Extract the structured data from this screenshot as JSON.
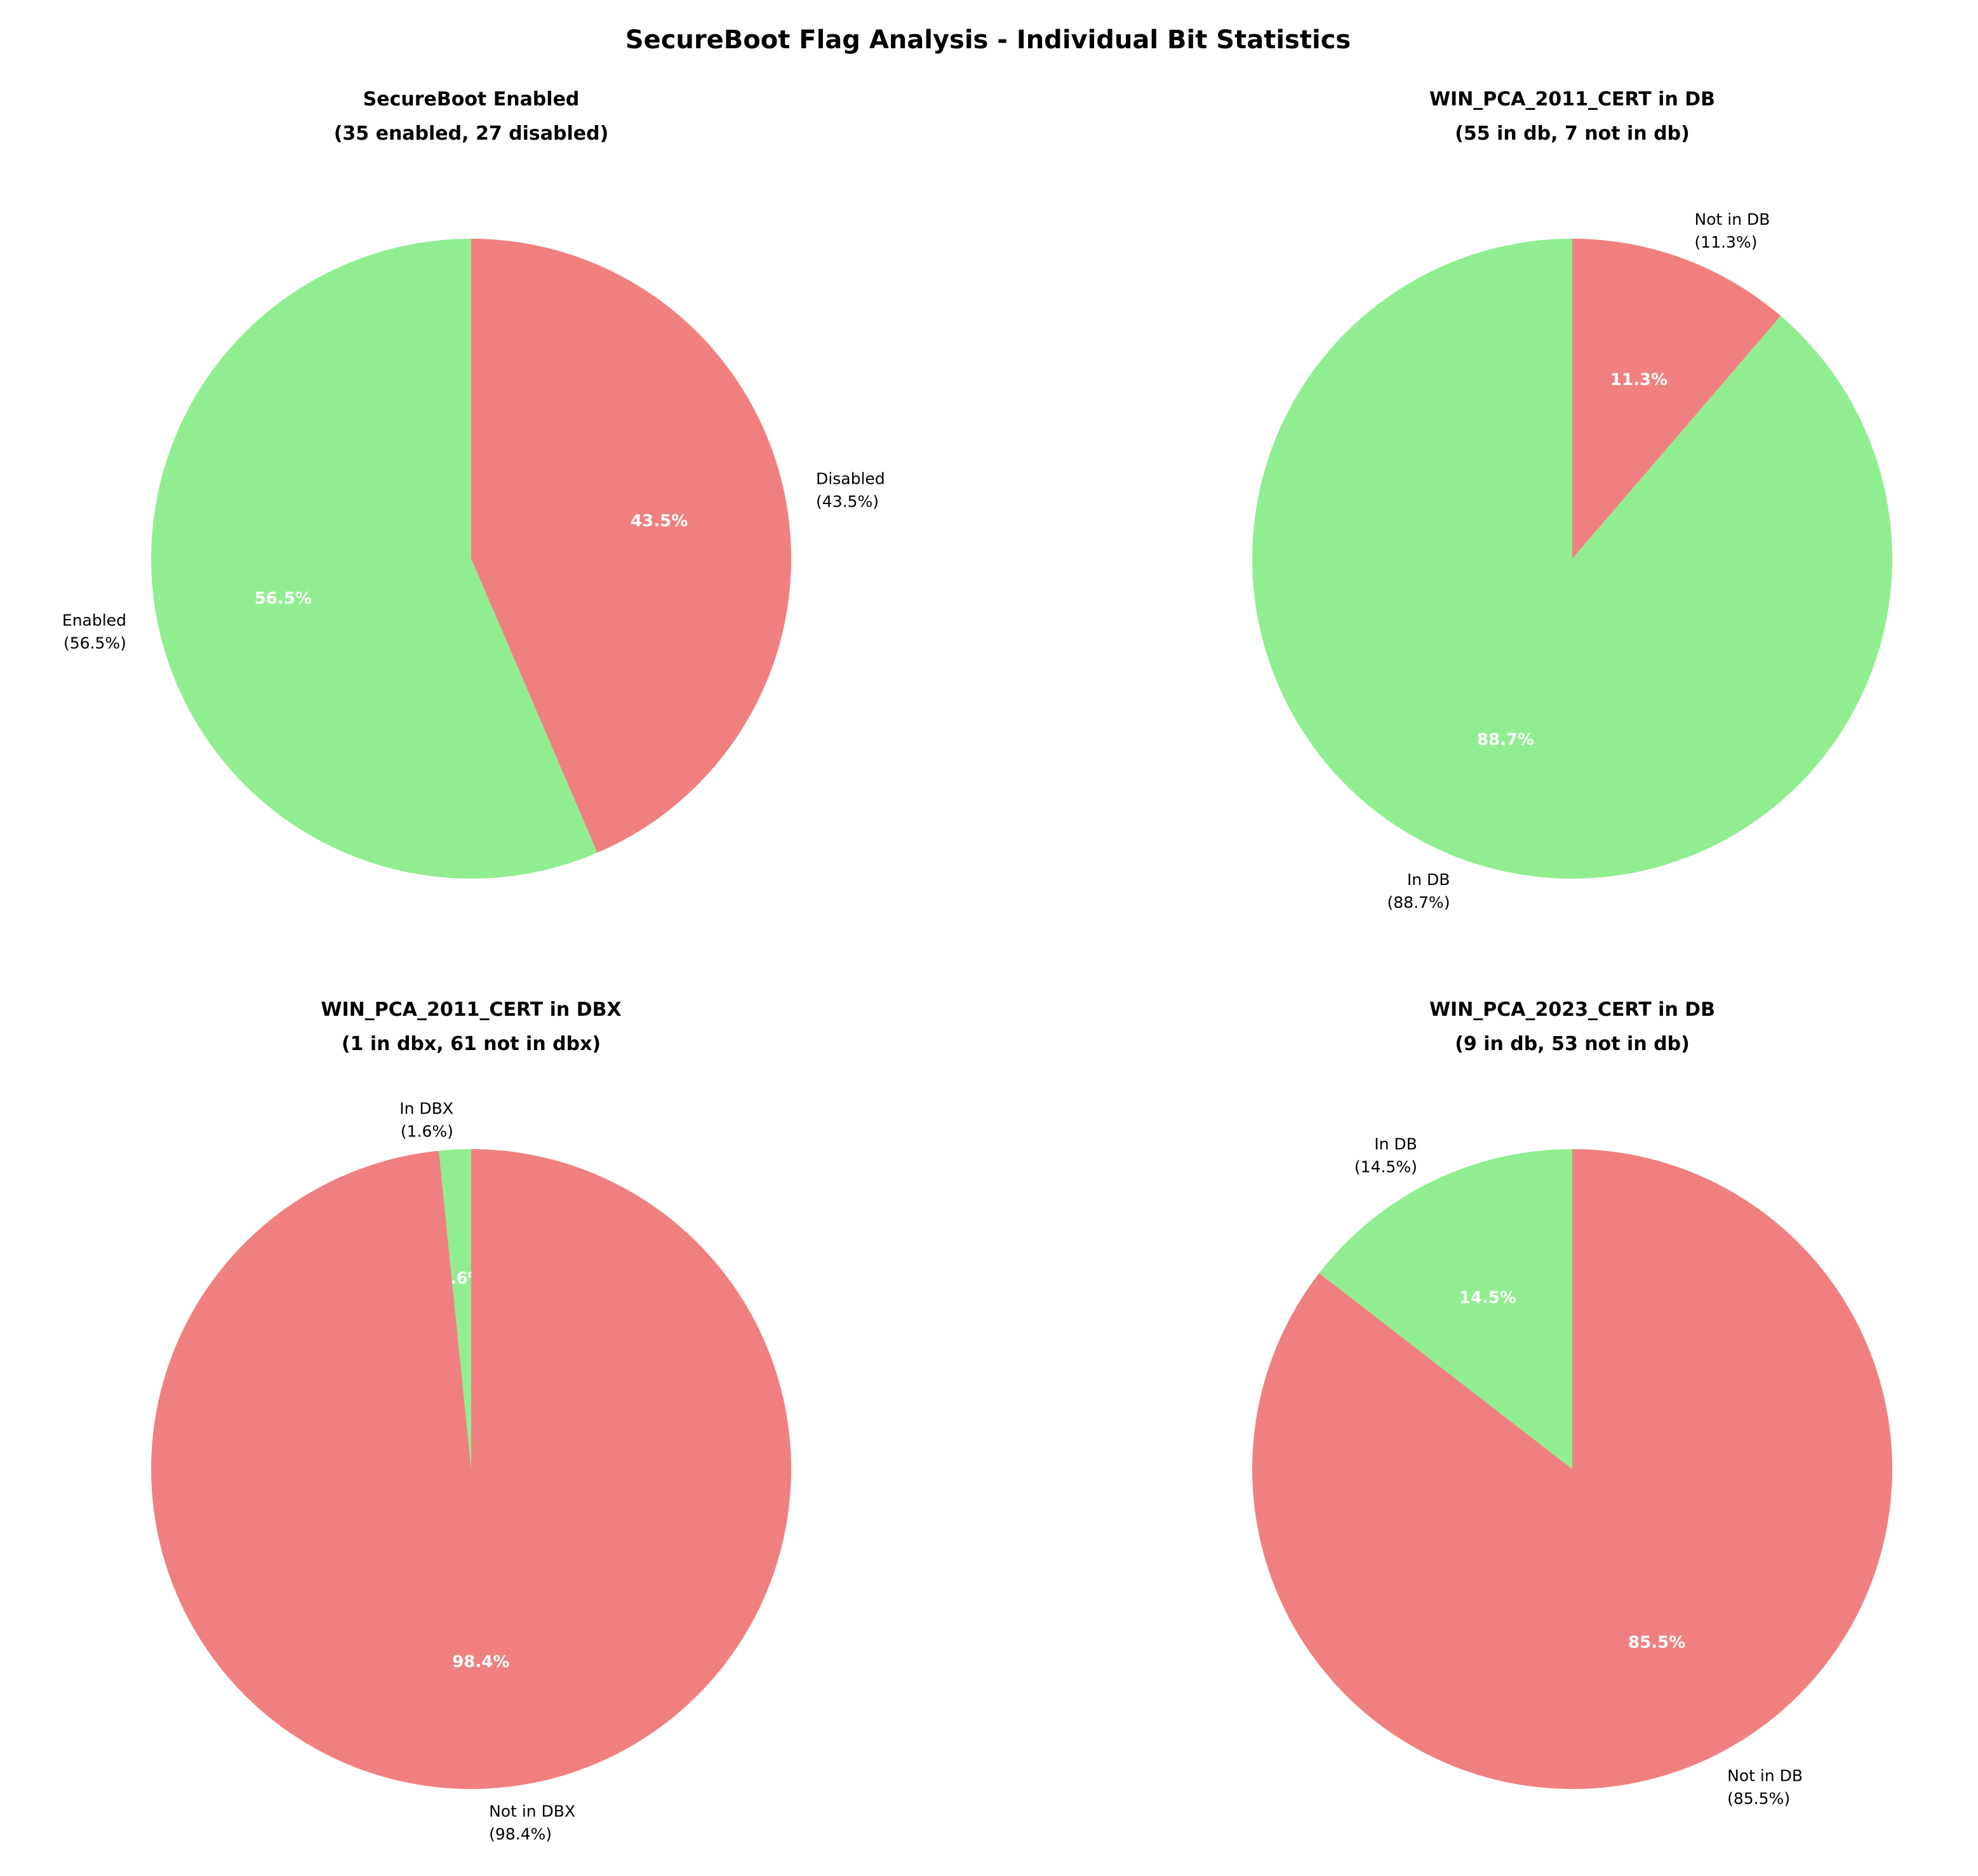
{
  "chart_data": {
    "title": "SecureBoot Flag Analysis - Individual Bit Statistics",
    "colors": {
      "first": "#90EE90",
      "second": "#F08080"
    },
    "charts": [
      {
        "type": "pie",
        "title_line1": "SecureBoot Enabled",
        "title_line2": "(35 enabled, 27 disabled)",
        "labels": [
          "Enabled",
          "Disabled"
        ],
        "values": [
          35,
          27
        ],
        "label_pct": [
          "(56.5%)",
          "(43.5%)"
        ],
        "autopct": [
          "56.5%",
          "43.5%"
        ],
        "start_angle": 90
      },
      {
        "type": "pie",
        "title_line1": "WIN_PCA_2011_CERT in DB",
        "title_line2": "(55 in db, 7 not in db)",
        "labels": [
          "In DB",
          "Not in DB"
        ],
        "values": [
          55,
          7
        ],
        "label_pct": [
          "(88.7%)",
          "(11.3%)"
        ],
        "autopct": [
          "88.7%",
          "11.3%"
        ],
        "start_angle": 90
      },
      {
        "type": "pie",
        "title_line1": "WIN_PCA_2011_CERT in DBX",
        "title_line2": "(1 in dbx, 61 not in dbx)",
        "labels": [
          "In DBX",
          "Not in DBX"
        ],
        "values": [
          1,
          61
        ],
        "label_pct": [
          "(1.6%)",
          "(98.4%)"
        ],
        "autopct": [
          "1.6%",
          "98.4%"
        ],
        "start_angle": 90
      },
      {
        "type": "pie",
        "title_line1": "WIN_PCA_2023_CERT in DB",
        "title_line2": "(9 in db, 53 not in db)",
        "labels": [
          "In DB",
          "Not in DB"
        ],
        "values": [
          9,
          53
        ],
        "label_pct": [
          "(14.5%)",
          "(85.5%)"
        ],
        "autopct": [
          "14.5%",
          "85.5%"
        ],
        "start_angle": 90
      }
    ]
  }
}
